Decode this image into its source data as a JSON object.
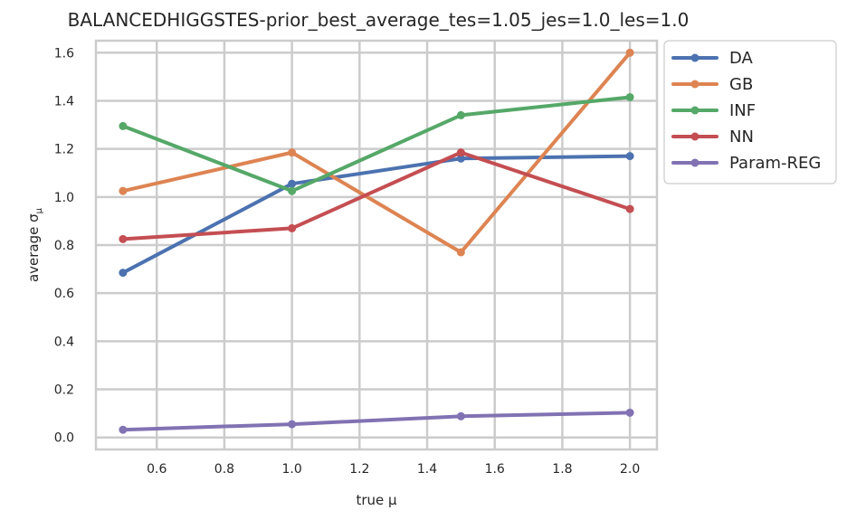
{
  "chart_data": {
    "type": "line",
    "title": "BALANCEDHIGGSTES-prior_best_average_tes=1.05_jes=1.0_les=1.0",
    "xlabel": "true μ",
    "ylabel_prefix": "average ",
    "ylabel_symbol": "σ",
    "ylabel_subscript": "μ",
    "x": [
      0.5,
      1.0,
      1.5,
      2.0
    ],
    "xlim": [
      0.42,
      2.08
    ],
    "ylim": [
      -0.05,
      1.65
    ],
    "xticks": [
      0.6,
      0.8,
      1.0,
      1.2,
      1.4,
      1.6,
      1.8,
      2.0
    ],
    "yticks": [
      0.0,
      0.2,
      0.4,
      0.6,
      0.8,
      1.0,
      1.2,
      1.4,
      1.6
    ],
    "grid": true,
    "legend_position": "outside-top-right",
    "series": [
      {
        "name": "DA",
        "color": "#4c72b0",
        "values": [
          0.685,
          1.055,
          1.16,
          1.17
        ]
      },
      {
        "name": "GB",
        "color": "#dd8452",
        "values": [
          1.025,
          1.185,
          0.77,
          1.6
        ]
      },
      {
        "name": "INF",
        "color": "#55a868",
        "values": [
          1.295,
          1.025,
          1.34,
          1.415
        ]
      },
      {
        "name": "NN",
        "color": "#c44e52",
        "values": [
          0.825,
          0.87,
          1.185,
          0.95
        ]
      },
      {
        "name": "Param-REG",
        "color": "#8172b3",
        "values": [
          0.032,
          0.055,
          0.088,
          0.103
        ]
      }
    ]
  }
}
